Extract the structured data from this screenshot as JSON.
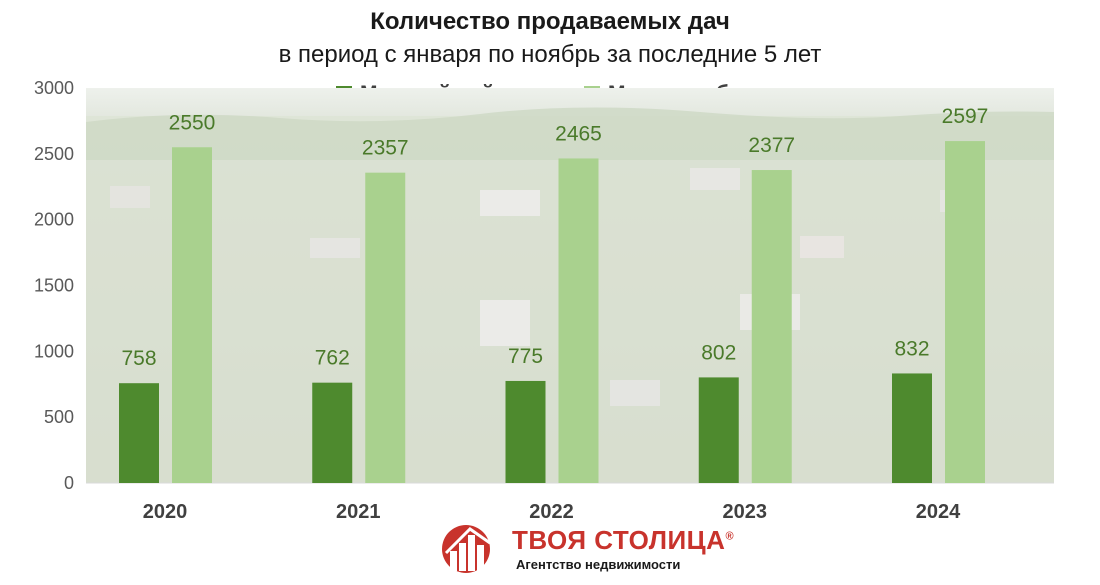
{
  "chart_data": {
    "type": "bar",
    "title": "Количество продаваемых дач",
    "subtitle": "в период с января по ноябрь за последние 5 лет",
    "categories": [
      "2020",
      "2021",
      "2022",
      "2023",
      "2024"
    ],
    "series": [
      {
        "name": "Минский район",
        "color": "#4e8a2e",
        "values": [
          758,
          762,
          775,
          802,
          832
        ]
      },
      {
        "name": "Минская область",
        "color": "#a9d18e",
        "values": [
          2550,
          2357,
          2465,
          2377,
          2597
        ]
      }
    ],
    "ylim": [
      0,
      3000
    ],
    "yticks": [
      0,
      500,
      1000,
      1500,
      2000,
      2500,
      3000
    ],
    "legend_position": "top-center",
    "grid": false
  },
  "logo": {
    "name": "ТВОЯ СТОЛИЦА",
    "registered_mark": "®",
    "tagline": "Агентство недвижимости",
    "color": "#c8332c"
  }
}
